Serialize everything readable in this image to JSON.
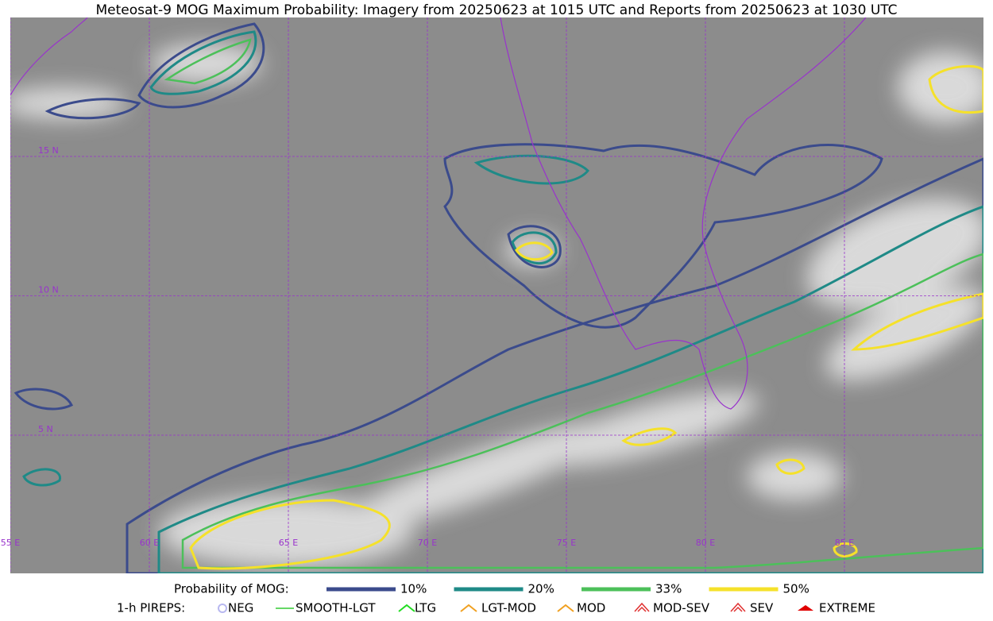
{
  "title": "Meteosat-9 MOG Maximum Probability: Imagery from 20250623 at 1015 UTC and Reports from 20250623 at 1030 UTC",
  "map": {
    "lat_labels": [
      "15 N",
      "10 N",
      "5 N"
    ],
    "lon_labels": [
      "55 E",
      "60 E",
      "65 E",
      "70 E",
      "75 E",
      "80 E",
      "85 E"
    ]
  },
  "legend": {
    "title": "Probability of MOG:",
    "levels": [
      {
        "label": "10%",
        "color": "#3b4b8c"
      },
      {
        "label": "20%",
        "color": "#1f8a87"
      },
      {
        "label": "33%",
        "color": "#4cc05a"
      },
      {
        "label": "50%",
        "color": "#f5e12a"
      }
    ]
  },
  "pireps": {
    "title": "1-h PIREPS:",
    "items": [
      {
        "label": "NEG",
        "color": "#b8b8f0"
      },
      {
        "label": "SMOOTH-LGT",
        "color": "#33cc33"
      },
      {
        "label": "LTG",
        "color": "#22dd22"
      },
      {
        "label": "LGT-MOD",
        "color": "#f0a020"
      },
      {
        "label": "MOD",
        "color": "#f0a020"
      },
      {
        "label": "MOD-SEV",
        "color": "#e03030"
      },
      {
        "label": "SEV",
        "color": "#e03030"
      },
      {
        "label": "EXTREME",
        "color": "#e00000"
      }
    ]
  }
}
